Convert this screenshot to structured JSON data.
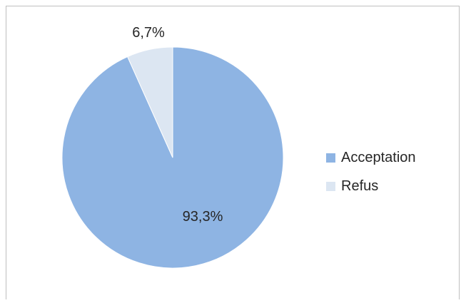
{
  "chart_data": {
    "type": "pie",
    "categories": [
      "Acceptation",
      "Refus"
    ],
    "values": [
      93.3,
      6.7
    ],
    "data_labels": [
      "93,3%",
      "6,7%"
    ],
    "colors": [
      "#8eb4e3",
      "#dce6f2"
    ],
    "legend_placement": "right"
  }
}
